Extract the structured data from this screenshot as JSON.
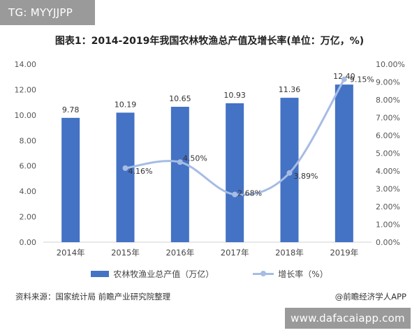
{
  "overlay_tag": "TG: MYYJJPP",
  "watermark_url": "www.dafacaiapp.com",
  "footer": {
    "source": "资料来源：国家统计局 前瞻产业研究院整理",
    "credit": "@前瞻经济学人APP"
  },
  "chart_data": {
    "type": "bar",
    "title": "图表1：2014-2019年我国农林牧渔总产值及增长率(单位：万亿，%)",
    "categories": [
      "2014年",
      "2015年",
      "2016年",
      "2017年",
      "2018年",
      "2019年"
    ],
    "series": [
      {
        "name": "农林牧渔业总产值（万亿）",
        "type": "bar",
        "axis": "left",
        "values": [
          9.78,
          10.19,
          10.65,
          10.93,
          11.36,
          12.4
        ],
        "labels": [
          "9.78",
          "10.19",
          "10.65",
          "10.93",
          "11.36",
          "12.40"
        ],
        "color": "#4472c4"
      },
      {
        "name": "增长率（%）",
        "type": "line",
        "axis": "right",
        "values": [
          null,
          4.16,
          4.5,
          2.68,
          3.89,
          9.15
        ],
        "labels": [
          "",
          "4.16%",
          "4.50%",
          "2.68%",
          "3.89%",
          "9.15%"
        ],
        "color": "#a6bce4"
      }
    ],
    "y_left": {
      "ylim": [
        0,
        14
      ],
      "ticks": [
        "0.00",
        "2.00",
        "4.00",
        "6.00",
        "8.00",
        "10.00",
        "12.00",
        "14.00"
      ]
    },
    "y_right": {
      "ylim": [
        0,
        10
      ],
      "ticks": [
        "0.00%",
        "1.00%",
        "2.00%",
        "3.00%",
        "4.00%",
        "5.00%",
        "6.00%",
        "7.00%",
        "8.00%",
        "9.00%",
        "10.00%"
      ]
    },
    "grid": false,
    "legend_position": "bottom"
  }
}
